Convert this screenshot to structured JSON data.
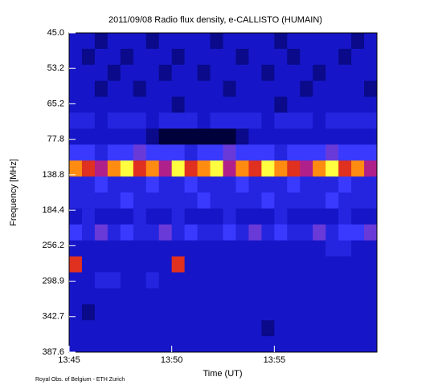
{
  "chart_data": {
    "type": "heatmap",
    "title": "2011/09/08  Radio flux density, e-CALLISTO (HUMAIN)",
    "x_label": "Time (UT)",
    "y_label": "Frequency [MHz]",
    "footer": "Royal Obs. of Belgium - ETH Zurich",
    "xlim": [
      "13:45",
      "14:00"
    ],
    "xticks": [
      "13:45",
      "13:50",
      "13:55"
    ],
    "yticks": [
      {
        "value": 45,
        "label": "45.0"
      },
      53.2,
      65.2,
      77.8,
      138.8,
      184.4,
      256.2,
      298.9,
      342.7,
      387.6
    ],
    "colormap": [
      "#00003a",
      "#0a0a8a",
      "#1616c8",
      "#2525e0",
      "#3a3aff",
      "#6a3ad8",
      "#b0208a",
      "#e03020",
      "#ff8c10",
      "#ffff40"
    ],
    "z": [
      [
        2,
        2,
        1,
        2,
        2,
        2,
        1,
        2,
        2,
        2,
        2,
        1,
        2,
        2,
        2,
        2,
        1,
        2,
        2,
        2,
        2,
        2,
        1,
        2
      ],
      [
        2,
        1,
        2,
        2,
        1,
        2,
        2,
        2,
        1,
        2,
        2,
        2,
        2,
        1,
        2,
        2,
        2,
        1,
        2,
        2,
        2,
        1,
        2,
        2
      ],
      [
        2,
        2,
        2,
        1,
        2,
        2,
        2,
        1,
        2,
        2,
        1,
        2,
        2,
        2,
        2,
        1,
        2,
        2,
        2,
        1,
        2,
        2,
        2,
        2
      ],
      [
        2,
        2,
        1,
        2,
        2,
        1,
        2,
        2,
        2,
        2,
        2,
        2,
        1,
        2,
        2,
        2,
        2,
        2,
        1,
        2,
        2,
        2,
        2,
        1
      ],
      [
        2,
        2,
        2,
        2,
        2,
        2,
        2,
        2,
        1,
        2,
        2,
        2,
        2,
        2,
        2,
        2,
        1,
        2,
        2,
        2,
        2,
        2,
        2,
        2
      ],
      [
        3,
        3,
        2,
        3,
        3,
        3,
        2,
        3,
        3,
        3,
        2,
        3,
        3,
        3,
        3,
        2,
        3,
        3,
        3,
        2,
        3,
        3,
        3,
        3
      ],
      [
        2,
        2,
        2,
        2,
        2,
        2,
        1,
        0,
        0,
        0,
        0,
        0,
        0,
        1,
        2,
        2,
        2,
        2,
        2,
        2,
        2,
        2,
        2,
        2
      ],
      [
        4,
        4,
        3,
        4,
        4,
        5,
        4,
        4,
        4,
        3,
        4,
        4,
        5,
        4,
        4,
        4,
        3,
        4,
        4,
        4,
        5,
        4,
        4,
        4
      ],
      [
        8,
        7,
        6,
        8,
        9,
        7,
        8,
        6,
        9,
        7,
        8,
        9,
        6,
        8,
        7,
        9,
        8,
        7,
        6,
        8,
        9,
        7,
        8,
        6
      ],
      [
        3,
        3,
        4,
        3,
        3,
        3,
        4,
        3,
        3,
        4,
        3,
        3,
        3,
        4,
        3,
        3,
        3,
        4,
        3,
        3,
        3,
        4,
        3,
        3
      ],
      [
        3,
        3,
        3,
        3,
        4,
        3,
        3,
        3,
        3,
        3,
        4,
        3,
        3,
        3,
        3,
        4,
        3,
        3,
        3,
        3,
        4,
        3,
        3,
        3
      ],
      [
        2,
        3,
        2,
        2,
        2,
        3,
        2,
        2,
        3,
        2,
        2,
        2,
        3,
        2,
        2,
        2,
        3,
        2,
        2,
        2,
        2,
        3,
        2,
        2
      ],
      [
        4,
        3,
        5,
        3,
        4,
        3,
        3,
        5,
        3,
        4,
        3,
        3,
        4,
        3,
        5,
        3,
        4,
        3,
        3,
        5,
        3,
        4,
        4,
        5
      ],
      [
        2,
        2,
        2,
        2,
        2,
        2,
        2,
        2,
        2,
        2,
        2,
        2,
        2,
        2,
        2,
        2,
        2,
        2,
        2,
        2,
        3,
        3,
        2,
        2
      ],
      [
        7,
        2,
        2,
        2,
        2,
        2,
        2,
        2,
        7,
        2,
        2,
        2,
        2,
        2,
        2,
        2,
        2,
        2,
        2,
        2,
        2,
        2,
        2,
        2
      ],
      [
        2,
        2,
        3,
        3,
        2,
        2,
        3,
        2,
        2,
        2,
        2,
        2,
        2,
        2,
        2,
        2,
        2,
        2,
        2,
        2,
        2,
        2,
        2,
        2
      ],
      [
        2,
        2,
        2,
        2,
        2,
        2,
        2,
        2,
        2,
        2,
        2,
        2,
        2,
        2,
        2,
        2,
        2,
        2,
        2,
        2,
        2,
        2,
        2,
        2
      ],
      [
        2,
        1,
        2,
        2,
        2,
        2,
        2,
        2,
        2,
        2,
        2,
        2,
        2,
        2,
        2,
        2,
        2,
        2,
        2,
        2,
        2,
        2,
        2,
        2
      ],
      [
        2,
        2,
        2,
        2,
        2,
        2,
        2,
        2,
        2,
        2,
        2,
        2,
        2,
        2,
        2,
        1,
        2,
        2,
        2,
        2,
        2,
        2,
        2,
        2
      ],
      [
        2,
        2,
        2,
        2,
        2,
        2,
        2,
        2,
        2,
        2,
        2,
        2,
        2,
        2,
        2,
        2,
        2,
        2,
        2,
        2,
        2,
        2,
        2,
        2
      ]
    ]
  }
}
